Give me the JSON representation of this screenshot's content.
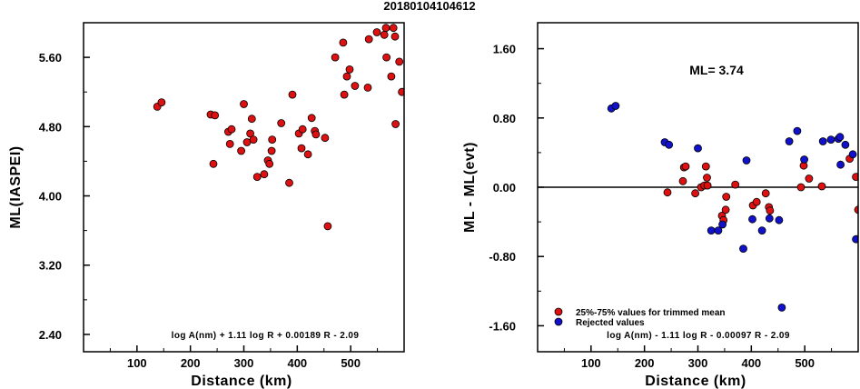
{
  "title": "20180104104612",
  "colors": {
    "accepted": "#dd1111",
    "rejected": "#1111cc",
    "axis": "#000000"
  },
  "chart_data": [
    {
      "type": "scatter",
      "xlabel": "Distance (km)",
      "ylabel": "ML(IASPEI)",
      "xlim": [
        0,
        600
      ],
      "ylim": [
        2.2,
        6.0
      ],
      "xticks": [
        "100",
        "200",
        "300",
        "400",
        "500"
      ],
      "yticks": [
        "2.40",
        "3.20",
        "4.00",
        "4.80",
        "5.60"
      ],
      "formula": "log A(nm) + 1.11 log R + 0.00189 R - 2.09",
      "series": [
        {
          "points": [
            [
              138,
              5.03
            ],
            [
              146,
              5.08
            ],
            [
              238,
              4.94
            ],
            [
              246,
              4.93
            ],
            [
              243,
              4.37
            ],
            [
              271,
              4.74
            ],
            [
              277,
              4.77
            ],
            [
              274,
              4.6
            ],
            [
              295,
              4.52
            ],
            [
              300,
              5.06
            ],
            [
              306,
              4.62
            ],
            [
              312,
              4.72
            ],
            [
              315,
              4.89
            ],
            [
              318,
              4.65
            ],
            [
              325,
              4.22
            ],
            [
              338,
              4.25
            ],
            [
              345,
              4.41
            ],
            [
              348,
              4.37
            ],
            [
              352,
              4.52
            ],
            [
              353,
              4.65
            ],
            [
              370,
              4.84
            ],
            [
              385,
              4.15
            ],
            [
              391,
              5.17
            ],
            [
              403,
              4.72
            ],
            [
              408,
              4.55
            ],
            [
              410,
              4.77
            ],
            [
              420,
              4.48
            ],
            [
              427,
              4.9
            ],
            [
              433,
              4.75
            ],
            [
              435,
              4.71
            ],
            [
              452,
              4.67
            ],
            [
              457,
              3.65
            ],
            [
              471,
              5.6
            ],
            [
              486,
              5.77
            ],
            [
              488,
              5.17
            ],
            [
              493,
              5.38
            ],
            [
              498,
              5.46
            ],
            [
              508,
              5.27
            ],
            [
              532,
              5.25
            ],
            [
              534,
              5.81
            ],
            [
              549,
              5.89
            ],
            [
              563,
              5.86
            ],
            [
              566,
              5.94
            ],
            [
              567,
              5.6
            ],
            [
              576,
              5.38
            ],
            [
              580,
              5.94
            ],
            [
              583,
              5.84
            ],
            [
              584,
              4.83
            ],
            [
              591,
              5.55
            ],
            [
              596,
              5.2
            ]
          ]
        }
      ]
    },
    {
      "type": "scatter",
      "xlabel": "Distance (km)",
      "ylabel": "ML - ML(evt)",
      "xlim": [
        0,
        600
      ],
      "ylim": [
        -1.9,
        1.9
      ],
      "xticks": [
        "100",
        "200",
        "300",
        "400",
        "500"
      ],
      "yticks": [
        "-1.60",
        "-0.80",
        "0.00",
        "0.80",
        "1.60"
      ],
      "annotation": "ML= 3.74",
      "formula": "log A(nm) - 1.11 log R - 0.00097 R - 2.09",
      "series": [
        {
          "name": "25%-75% values for trimmed mean",
          "points": [
            [
              243,
              -0.06
            ],
            [
              274,
              0.23
            ],
            [
              277,
              0.24
            ],
            [
              272,
              0.07
            ],
            [
              295,
              -0.07
            ],
            [
              306,
              0.0
            ],
            [
              312,
              0.02
            ],
            [
              315,
              0.24
            ],
            [
              317,
              0.11
            ],
            [
              318,
              0.02
            ],
            [
              345,
              -0.33
            ],
            [
              348,
              -0.38
            ],
            [
              352,
              -0.26
            ],
            [
              353,
              -0.11
            ],
            [
              370,
              0.03
            ],
            [
              403,
              -0.21
            ],
            [
              410,
              -0.17
            ],
            [
              427,
              -0.07
            ],
            [
              433,
              -0.23
            ],
            [
              435,
              -0.27
            ],
            [
              493,
              0.0
            ],
            [
              498,
              0.25
            ],
            [
              508,
              0.1
            ],
            [
              532,
              0.01
            ],
            [
              584,
              0.33
            ],
            [
              596,
              0.12
            ],
            [
              600,
              -0.26
            ]
          ]
        },
        {
          "name": "Rejected values",
          "points": [
            [
              138,
              0.91
            ],
            [
              146,
              0.94
            ],
            [
              238,
              0.52
            ],
            [
              246,
              0.49
            ],
            [
              300,
              0.45
            ],
            [
              325,
              -0.5
            ],
            [
              338,
              -0.5
            ],
            [
              346,
              -0.43
            ],
            [
              385,
              -0.71
            ],
            [
              391,
              0.31
            ],
            [
              402,
              -0.37
            ],
            [
              420,
              -0.5
            ],
            [
              434,
              -0.36
            ],
            [
              452,
              -0.38
            ],
            [
              457,
              -1.39
            ],
            [
              471,
              0.53
            ],
            [
              486,
              0.65
            ],
            [
              499,
              0.32
            ],
            [
              534,
              0.53
            ],
            [
              549,
              0.55
            ],
            [
              563,
              0.56
            ],
            [
              566,
              0.58
            ],
            [
              567,
              0.26
            ],
            [
              576,
              0.49
            ],
            [
              590,
              0.38
            ],
            [
              596,
              -0.6
            ]
          ]
        }
      ]
    }
  ]
}
